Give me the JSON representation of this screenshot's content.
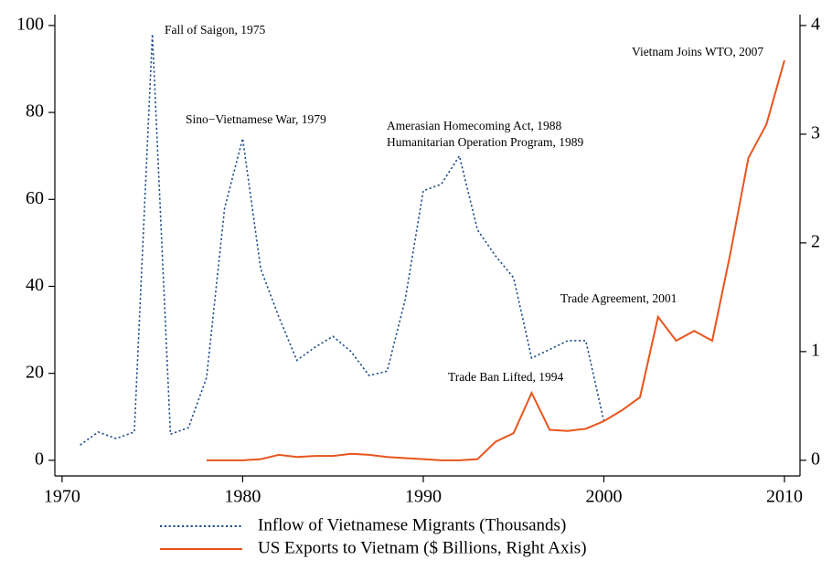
{
  "chart_data": {
    "type": "line",
    "x": [
      1971,
      1972,
      1973,
      1974,
      1975,
      1976,
      1977,
      1978,
      1979,
      1980,
      1981,
      1982,
      1983,
      1984,
      1985,
      1986,
      1987,
      1988,
      1989,
      1990,
      1991,
      1992,
      1993,
      1994,
      1995,
      1996,
      1997,
      1998,
      1999,
      2000,
      2001,
      2002,
      2003,
      2004,
      2005,
      2006,
      2007,
      2008,
      2009,
      2010
    ],
    "series": [
      {
        "name": "Inflow of Vietnamese Migrants (Thousands)",
        "color": "#1f4e8c",
        "dash": "dotted",
        "values": [
          3.5,
          6.5,
          5,
          6.5,
          98,
          6,
          7.5,
          19,
          58,
          74,
          44,
          33,
          23,
          26,
          28.5,
          25,
          19.5,
          20.5,
          37,
          62,
          63.5,
          70,
          53,
          47,
          42,
          23.5,
          25.5,
          27.5,
          27.5,
          9,
          null,
          null,
          null,
          null,
          null,
          null,
          null,
          null,
          null,
          null
        ]
      },
      {
        "name": "US Exports to Vietnam ($ Billions, Right Axis)",
        "color": "#e8541c",
        "dash": "solid",
        "axis": "y2",
        "values": [
          null,
          null,
          null,
          null,
          null,
          null,
          null,
          0,
          0,
          0,
          0.01,
          0.05,
          0.03,
          0.04,
          0.04,
          0.06,
          0.05,
          0.03,
          0.02,
          0.01,
          0,
          0,
          0.01,
          0.17,
          0.25,
          0.62,
          0.28,
          0.27,
          0.29,
          0.36,
          0.46,
          0.58,
          1.32,
          1.1,
          1.19,
          1.1,
          1.9,
          2.78,
          3.09,
          3.68
        ]
      }
    ],
    "xlim": [
      1969.6,
      2010.86
    ],
    "xticks": [
      1970,
      1980,
      1990,
      2000,
      2010
    ],
    "ylim": [
      -3.6,
      102.5
    ],
    "yticks": [
      0,
      20,
      40,
      60,
      80,
      100
    ],
    "y2lim": [
      -0.144,
      4.1
    ],
    "y2ticks": [
      0,
      1,
      2,
      3,
      4
    ],
    "annotations": [
      "Fall of Saigon, 1975",
      "Sino−Vietnamese War, 1979",
      "Amerasian Homecoming Act, 1988",
      "Humanitarian Operation Program, 1989",
      "Trade Ban Lifted, 1994",
      "Trade Agreement, 2001",
      "Vietnam Joins WTO, 2007"
    ]
  }
}
